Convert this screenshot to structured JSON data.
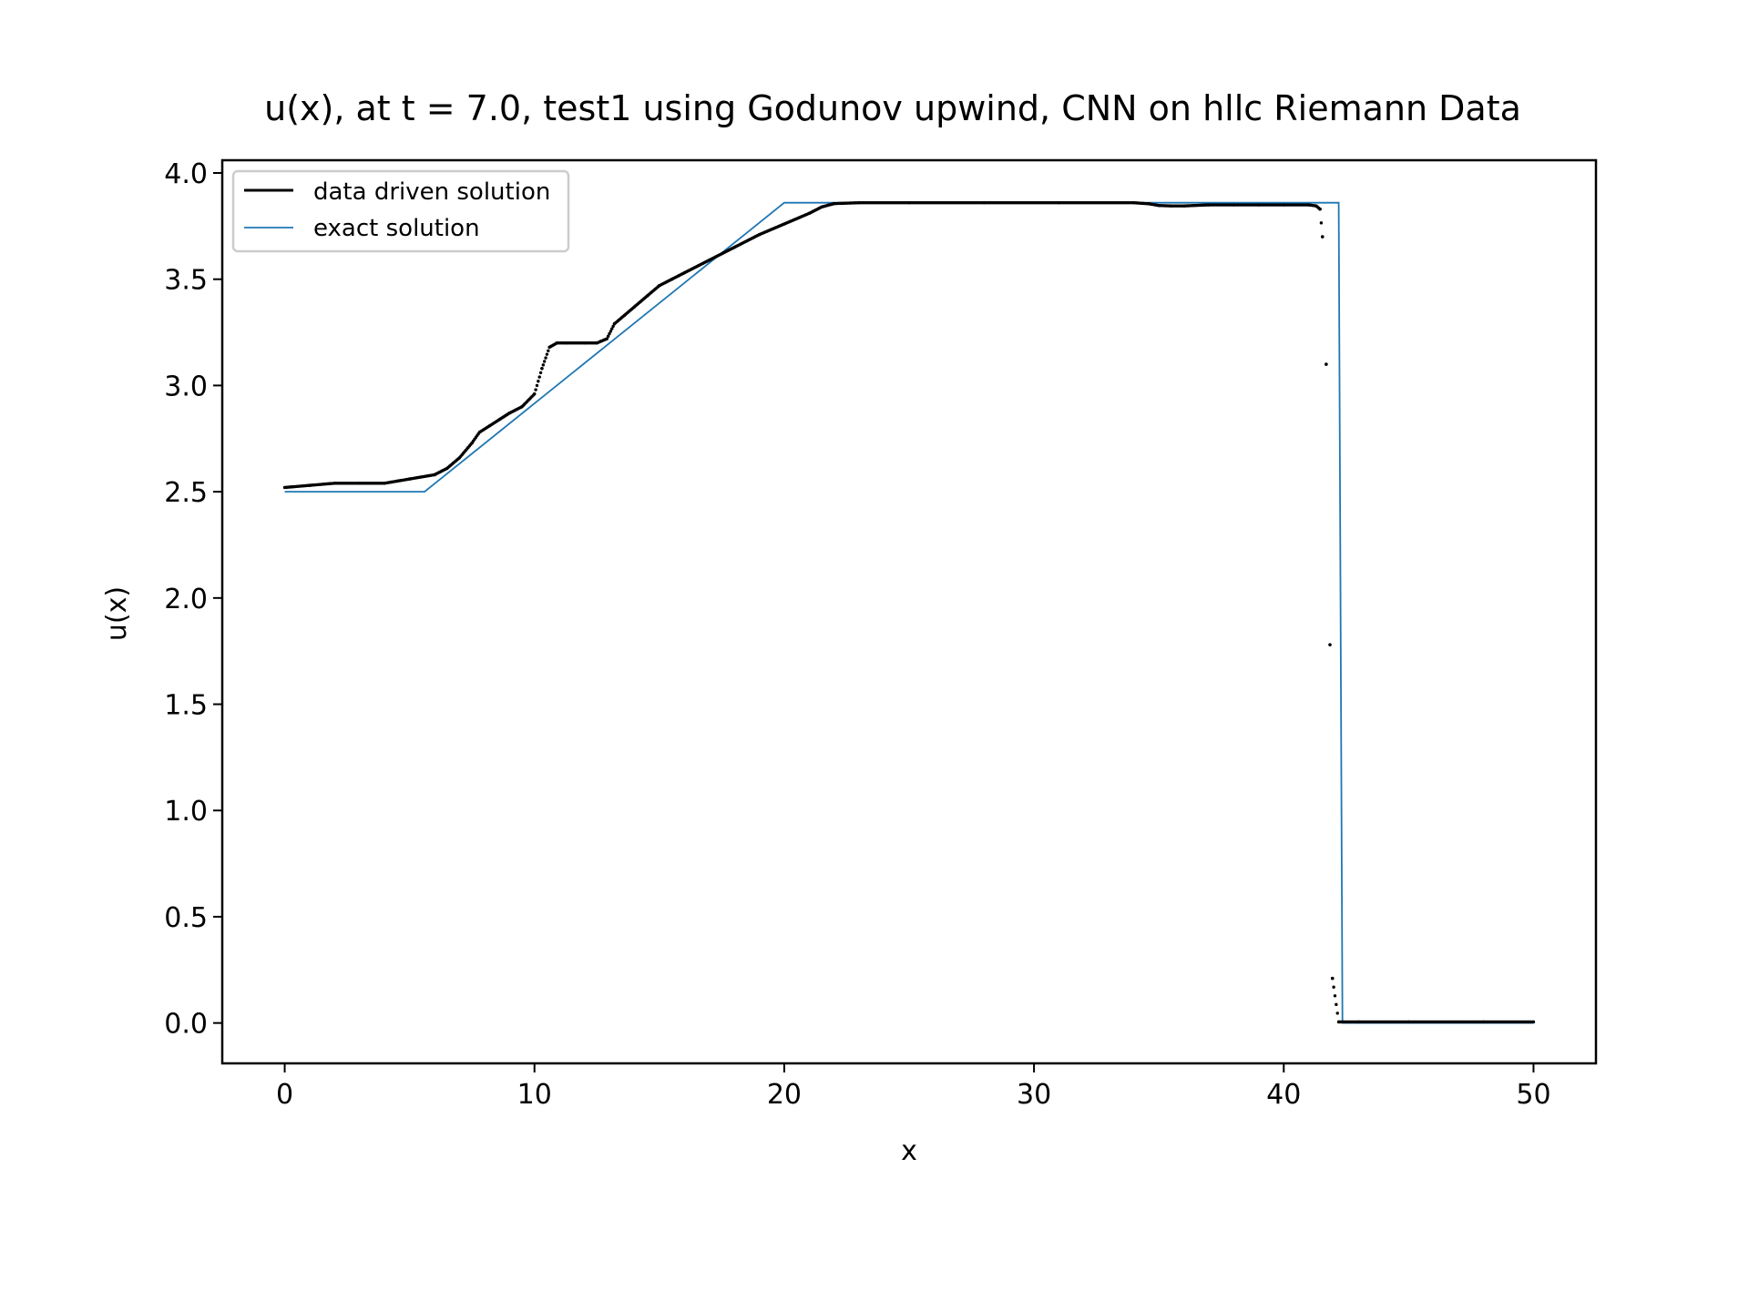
{
  "chart_data": {
    "type": "line",
    "title": "u(x), at t = 7.0, test1 using Godunov upwind, CNN on hllc Riemann Data",
    "xlabel": "x",
    "ylabel": "u(x)",
    "xlim": [
      -2.5,
      52.5
    ],
    "ylim": [
      -0.19,
      4.06
    ],
    "xticks": [
      0,
      10,
      20,
      30,
      40,
      50
    ],
    "xtick_labels": [
      "0",
      "10",
      "20",
      "30",
      "40",
      "50"
    ],
    "yticks": [
      0.0,
      0.5,
      1.0,
      1.5,
      2.0,
      2.5,
      3.0,
      3.5,
      4.0
    ],
    "ytick_labels": [
      "0.0",
      "0.5",
      "1.0",
      "1.5",
      "2.0",
      "2.5",
      "3.0",
      "3.5",
      "4.0"
    ],
    "grid": false,
    "legend_position": "top-left",
    "series": [
      {
        "name": "data driven solution",
        "color": "#000000",
        "style": "dots",
        "x": [
          0,
          1,
          2,
          3,
          4,
          4.5,
          5,
          5.5,
          6,
          6.5,
          7,
          7.5,
          7.8,
          8.2,
          8.6,
          9,
          9.5,
          10,
          10.3,
          10.6,
          10.9,
          11.3,
          12,
          12.5,
          12.9,
          13.2,
          13.6,
          14,
          14.5,
          15,
          15.5,
          16,
          17,
          18,
          19,
          20,
          21,
          21.5,
          22,
          23,
          25,
          28,
          31,
          34,
          34.6,
          35,
          35.5,
          36,
          37,
          38,
          39,
          40,
          41,
          41.3,
          41.45,
          41.55,
          41.7,
          41.85,
          41.95,
          42.2,
          43,
          45,
          48,
          50
        ],
        "y": [
          2.52,
          2.53,
          2.54,
          2.54,
          2.54,
          2.55,
          2.56,
          2.57,
          2.58,
          2.61,
          2.66,
          2.73,
          2.78,
          2.81,
          2.84,
          2.87,
          2.9,
          2.96,
          3.08,
          3.18,
          3.2,
          3.2,
          3.2,
          3.2,
          3.22,
          3.29,
          3.33,
          3.37,
          3.42,
          3.47,
          3.5,
          3.53,
          3.59,
          3.65,
          3.71,
          3.76,
          3.81,
          3.84,
          3.856,
          3.86,
          3.86,
          3.86,
          3.86,
          3.86,
          3.855,
          3.847,
          3.845,
          3.845,
          3.85,
          3.85,
          3.85,
          3.85,
          3.85,
          3.845,
          3.83,
          3.7,
          3.1,
          1.78,
          0.21,
          0.005,
          0.005,
          0.005,
          0.005,
          0.005
        ]
      },
      {
        "name": "exact solution",
        "color": "#1f77b4",
        "style": "line",
        "x": [
          0,
          5.6,
          20,
          42.2,
          42.35,
          50
        ],
        "y": [
          2.5,
          2.5,
          3.86,
          3.86,
          0.0,
          0.0
        ]
      }
    ]
  }
}
